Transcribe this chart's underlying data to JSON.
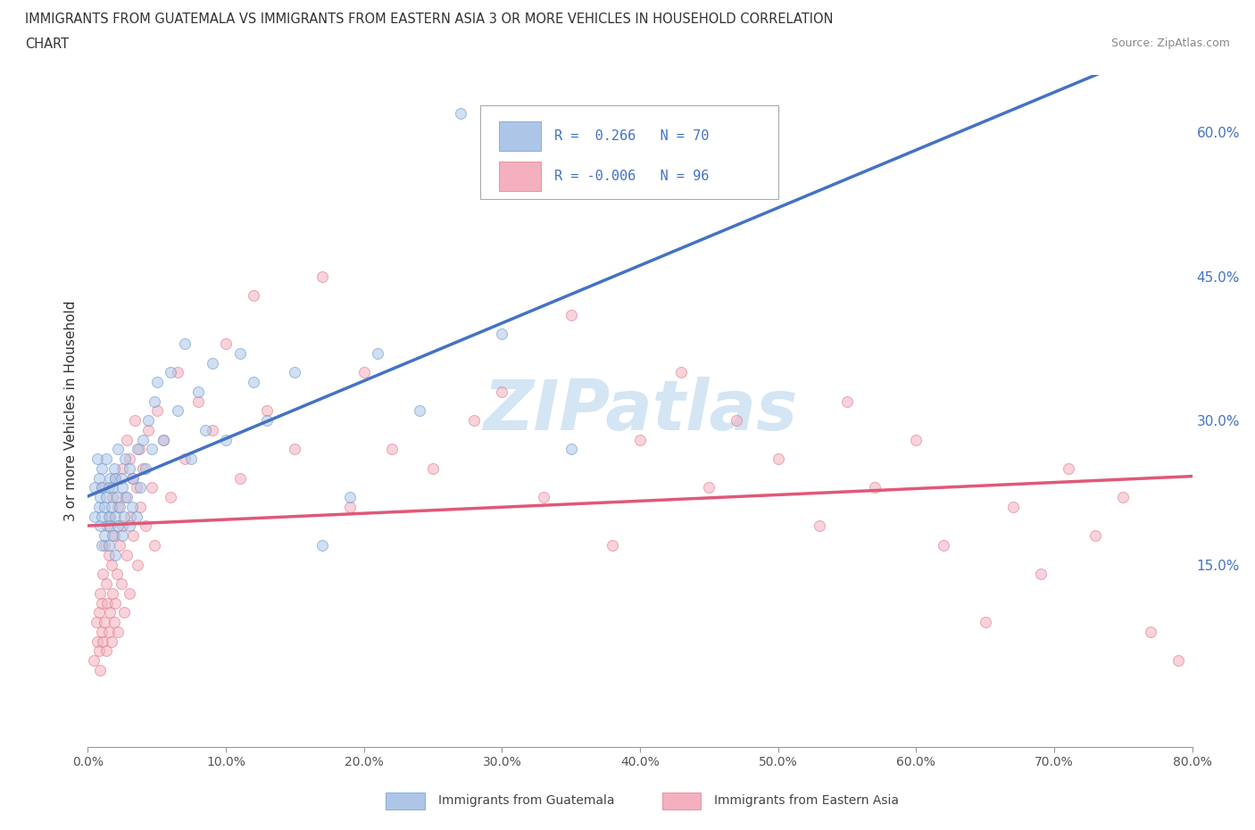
{
  "title_line1": "IMMIGRANTS FROM GUATEMALA VS IMMIGRANTS FROM EASTERN ASIA 3 OR MORE VEHICLES IN HOUSEHOLD CORRELATION",
  "title_line2": "CHART",
  "source": "Source: ZipAtlas.com",
  "ylabel": "3 or more Vehicles in Household",
  "xlim": [
    0.0,
    0.8
  ],
  "ylim": [
    -0.04,
    0.66
  ],
  "right_yticks": [
    0.15,
    0.3,
    0.45,
    0.6
  ],
  "right_yticklabels": [
    "15.0%",
    "30.0%",
    "45.0%",
    "60.0%"
  ],
  "xticks": [
    0.0,
    0.1,
    0.2,
    0.3,
    0.4,
    0.5,
    0.6,
    0.7,
    0.8
  ],
  "xticklabels": [
    "0.0%",
    "10.0%",
    "20.0%",
    "30.0%",
    "40.0%",
    "50.0%",
    "60.0%",
    "70.0%",
    "80.0%"
  ],
  "series1_color": "#adc6e8",
  "series1_edgecolor": "#6699cc",
  "series1_label": "Immigrants from Guatemala",
  "series1_R": 0.266,
  "series1_N": 70,
  "series1_line_color": "#4472C4",
  "series2_color": "#f4b0be",
  "series2_edgecolor": "#e07888",
  "series2_label": "Immigrants from Eastern Asia",
  "series2_R": -0.006,
  "series2_N": 96,
  "series2_line_color": "#e05878",
  "legend_R_color": "#4472C4",
  "watermark": "ZIPatlas",
  "grid_color": "#cccccc",
  "background_color": "#ffffff",
  "scatter_alpha": 0.55,
  "scatter_size": 75,
  "series1_x": [
    0.005,
    0.005,
    0.007,
    0.008,
    0.008,
    0.009,
    0.009,
    0.01,
    0.01,
    0.01,
    0.01,
    0.012,
    0.012,
    0.013,
    0.013,
    0.015,
    0.015,
    0.015,
    0.016,
    0.016,
    0.017,
    0.018,
    0.018,
    0.019,
    0.02,
    0.02,
    0.02,
    0.021,
    0.022,
    0.022,
    0.023,
    0.024,
    0.025,
    0.025,
    0.026,
    0.027,
    0.028,
    0.03,
    0.03,
    0.032,
    0.033,
    0.035,
    0.036,
    0.038,
    0.04,
    0.042,
    0.044,
    0.046,
    0.048,
    0.05,
    0.055,
    0.06,
    0.065,
    0.07,
    0.075,
    0.08,
    0.085,
    0.09,
    0.1,
    0.11,
    0.12,
    0.13,
    0.15,
    0.17,
    0.19,
    0.21,
    0.24,
    0.27,
    0.3,
    0.35
  ],
  "series1_y": [
    0.23,
    0.2,
    0.26,
    0.21,
    0.24,
    0.19,
    0.22,
    0.17,
    0.2,
    0.23,
    0.25,
    0.18,
    0.21,
    0.22,
    0.26,
    0.17,
    0.2,
    0.23,
    0.19,
    0.24,
    0.21,
    0.18,
    0.23,
    0.25,
    0.16,
    0.2,
    0.24,
    0.22,
    0.19,
    0.27,
    0.21,
    0.24,
    0.18,
    0.23,
    0.2,
    0.26,
    0.22,
    0.19,
    0.25,
    0.21,
    0.24,
    0.2,
    0.27,
    0.23,
    0.28,
    0.25,
    0.3,
    0.27,
    0.32,
    0.34,
    0.28,
    0.35,
    0.31,
    0.38,
    0.26,
    0.33,
    0.29,
    0.36,
    0.28,
    0.37,
    0.34,
    0.3,
    0.35,
    0.17,
    0.22,
    0.37,
    0.31,
    0.62,
    0.39,
    0.27
  ],
  "series2_x": [
    0.004,
    0.006,
    0.007,
    0.008,
    0.008,
    0.009,
    0.009,
    0.01,
    0.01,
    0.01,
    0.011,
    0.011,
    0.012,
    0.012,
    0.013,
    0.013,
    0.014,
    0.014,
    0.015,
    0.015,
    0.016,
    0.016,
    0.017,
    0.017,
    0.018,
    0.018,
    0.019,
    0.019,
    0.02,
    0.02,
    0.021,
    0.022,
    0.022,
    0.023,
    0.024,
    0.025,
    0.025,
    0.026,
    0.027,
    0.028,
    0.028,
    0.03,
    0.03,
    0.031,
    0.032,
    0.033,
    0.034,
    0.035,
    0.036,
    0.037,
    0.038,
    0.04,
    0.042,
    0.044,
    0.046,
    0.048,
    0.05,
    0.055,
    0.06,
    0.065,
    0.07,
    0.08,
    0.09,
    0.1,
    0.11,
    0.12,
    0.13,
    0.15,
    0.17,
    0.19,
    0.2,
    0.22,
    0.25,
    0.28,
    0.3,
    0.33,
    0.35,
    0.38,
    0.4,
    0.43,
    0.45,
    0.47,
    0.5,
    0.53,
    0.55,
    0.57,
    0.6,
    0.62,
    0.65,
    0.67,
    0.69,
    0.71,
    0.73,
    0.75,
    0.77,
    0.79
  ],
  "series2_y": [
    0.05,
    0.09,
    0.07,
    0.06,
    0.1,
    0.04,
    0.12,
    0.08,
    0.11,
    0.23,
    0.07,
    0.14,
    0.09,
    0.17,
    0.06,
    0.13,
    0.11,
    0.19,
    0.08,
    0.16,
    0.1,
    0.2,
    0.07,
    0.15,
    0.12,
    0.22,
    0.09,
    0.18,
    0.11,
    0.24,
    0.14,
    0.08,
    0.21,
    0.17,
    0.13,
    0.25,
    0.19,
    0.1,
    0.22,
    0.16,
    0.28,
    0.12,
    0.26,
    0.2,
    0.24,
    0.18,
    0.3,
    0.23,
    0.15,
    0.27,
    0.21,
    0.25,
    0.19,
    0.29,
    0.23,
    0.17,
    0.31,
    0.28,
    0.22,
    0.35,
    0.26,
    0.32,
    0.29,
    0.38,
    0.24,
    0.43,
    0.31,
    0.27,
    0.45,
    0.21,
    0.35,
    0.27,
    0.25,
    0.3,
    0.33,
    0.22,
    0.41,
    0.17,
    0.28,
    0.35,
    0.23,
    0.3,
    0.26,
    0.19,
    0.32,
    0.23,
    0.28,
    0.17,
    0.09,
    0.21,
    0.14,
    0.25,
    0.18,
    0.22,
    0.08,
    0.05
  ]
}
